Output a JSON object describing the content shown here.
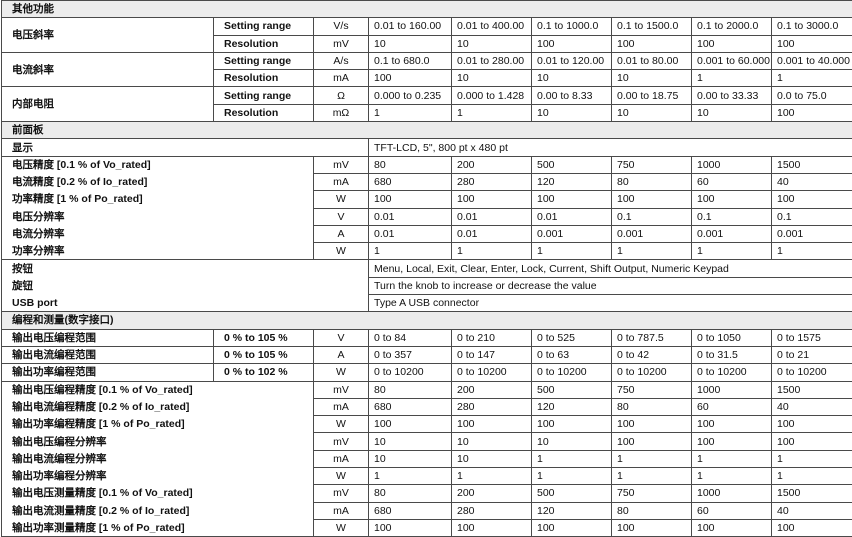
{
  "sections": [
    {
      "title": "其他功能",
      "groups": [
        {
          "label": "电压斜率",
          "rows": [
            {
              "sub": "Setting range",
              "unit": "V/s",
              "values": [
                "0.01 to 160.00",
                "0.01 to 400.00",
                "0.1 to 1000.0",
                "0.1 to 1500.0",
                "0.1 to 2000.0",
                "0.1 to 3000.0"
              ]
            },
            {
              "sub": "Resolution",
              "unit": "mV",
              "values": [
                "10",
                "10",
                "100",
                "100",
                "100",
                "100"
              ]
            }
          ]
        },
        {
          "label": "电流斜率",
          "rows": [
            {
              "sub": "Setting range",
              "unit": "A/s",
              "values": [
                "0.1 to 680.0",
                "0.01 to 280.00",
                "0.01 to 120.00",
                "0.01 to 80.00",
                "0.001 to 60.000",
                "0.001 to 40.000"
              ]
            },
            {
              "sub": "Resolution",
              "unit": "mA",
              "values": [
                "100",
                "10",
                "10",
                "10",
                "1",
                "1"
              ]
            }
          ]
        },
        {
          "label": "内部电阻",
          "rows": [
            {
              "sub": "Setting range",
              "unit": "Ω",
              "values": [
                "0.000 to 0.235",
                "0.000 to 1.428",
                "0.00 to 8.33",
                "0.00 to 18.75",
                "0.00 to 33.33",
                "0.0 to 75.0"
              ]
            },
            {
              "sub": "Resolution",
              "unit": "mΩ",
              "values": [
                "1",
                "1",
                "10",
                "10",
                "10",
                "100"
              ]
            }
          ]
        }
      ]
    },
    {
      "title": "前面板",
      "display": {
        "label": "显示",
        "value": "TFT-LCD, 5\", 800 pt x 480 pt"
      },
      "rows": [
        {
          "label": "电压精度 [0.1 % of Vo_rated]",
          "unit": "mV",
          "values": [
            "80",
            "200",
            "500",
            "750",
            "1000",
            "1500"
          ]
        },
        {
          "label": "电流精度 [0.2 % of Io_rated]",
          "unit": "mA",
          "values": [
            "680",
            "280",
            "120",
            "80",
            "60",
            "40"
          ]
        },
        {
          "label": "功率精度 [1 % of Po_rated]",
          "unit": "W",
          "values": [
            "100",
            "100",
            "100",
            "100",
            "100",
            "100"
          ]
        },
        {
          "label": "电压分辨率",
          "unit": "V",
          "values": [
            "0.01",
            "0.01",
            "0.01",
            "0.1",
            "0.1",
            "0.1"
          ]
        },
        {
          "label": "电流分辨率",
          "unit": "A",
          "values": [
            "0.01",
            "0.01",
            "0.001",
            "0.001",
            "0.001",
            "0.001"
          ]
        },
        {
          "label": "功率分辨率",
          "unit": "W",
          "values": [
            "1",
            "1",
            "1",
            "1",
            "1",
            "1"
          ]
        }
      ],
      "text_rows": [
        {
          "label": "按钮",
          "value": "Menu, Local, Exit, Clear, Enter, Lock, Current, Shift Output, Numeric Keypad"
        },
        {
          "label": "旋钮",
          "value": "Turn the knob to increase or decrease the value"
        },
        {
          "label": "USB port",
          "value": "Type A USB connector"
        }
      ]
    },
    {
      "title": "编程和测量(数字接口)",
      "range_rows": [
        {
          "label": "输出电压编程范围",
          "sub": "0 % to 105 %",
          "unit": "V",
          "values": [
            "0 to 84",
            "0 to 210",
            "0 to 525",
            "0 to 787.5",
            "0 to 1050",
            "0 to 1575"
          ]
        },
        {
          "label": "输出电流编程范围",
          "sub": "0 % to 105 %",
          "unit": "A",
          "values": [
            "0 to 357",
            "0 to 147",
            "0 to 63",
            "0 to 42",
            "0 to 31.5",
            "0 to 21"
          ]
        },
        {
          "label": "输出功率编程范围",
          "sub": "0 % to 102 %",
          "unit": "W",
          "values": [
            "0 to 10200",
            "0 to 10200",
            "0 to 10200",
            "0 to 10200",
            "0 to 10200",
            "0 to 10200"
          ]
        }
      ],
      "rows": [
        {
          "label": "输出电压编程精度 [0.1 % of Vo_rated]",
          "unit": "mV",
          "values": [
            "80",
            "200",
            "500",
            "750",
            "1000",
            "1500"
          ]
        },
        {
          "label": "输出电流编程精度 [0.2 % of Io_rated]",
          "unit": "mA",
          "values": [
            "680",
            "280",
            "120",
            "80",
            "60",
            "40"
          ]
        },
        {
          "label": "输出功率编程精度 [1 % of Po_rated]",
          "unit": "W",
          "values": [
            "100",
            "100",
            "100",
            "100",
            "100",
            "100"
          ]
        },
        {
          "label": "输出电压编程分辨率",
          "unit": "mV",
          "values": [
            "10",
            "10",
            "10",
            "100",
            "100",
            "100"
          ]
        },
        {
          "label": "输出电流编程分辨率",
          "unit": "mA",
          "values": [
            "10",
            "10",
            "1",
            "1",
            "1",
            "1"
          ]
        },
        {
          "label": "输出功率编程分辨率",
          "unit": "W",
          "values": [
            "1",
            "1",
            "1",
            "1",
            "1",
            "1"
          ]
        },
        {
          "label": "输出电压测量精度 [0.1 % of Vo_rated]",
          "unit": "mV",
          "values": [
            "80",
            "200",
            "500",
            "750",
            "1000",
            "1500"
          ]
        },
        {
          "label": "输出电流测量精度 [0.2 % of Io_rated]",
          "unit": "mA",
          "values": [
            "680",
            "280",
            "120",
            "80",
            "60",
            "40"
          ]
        },
        {
          "label": "输出功率测量精度 [1 % of Po_rated]",
          "unit": "W",
          "values": [
            "100",
            "100",
            "100",
            "100",
            "100",
            "100"
          ]
        }
      ]
    }
  ]
}
